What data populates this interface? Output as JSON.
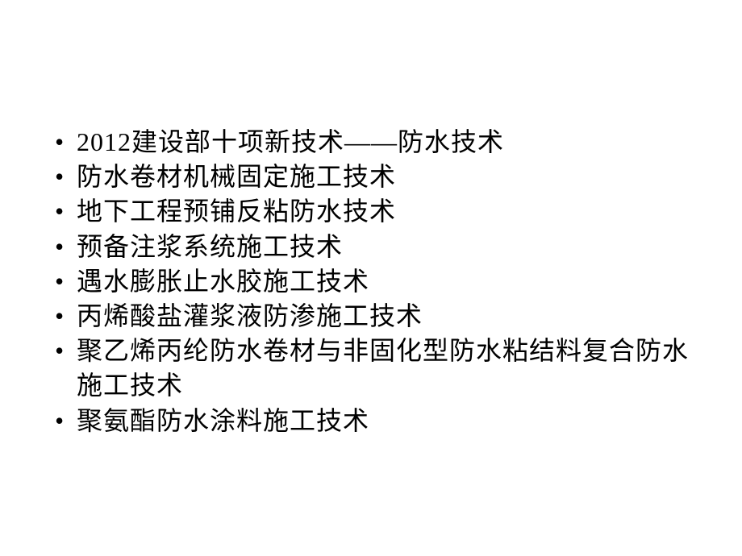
{
  "slide": {
    "background_color": "#ffffff",
    "text_color": "#000000",
    "font_family": "SimSun",
    "font_size_pt": 32,
    "line_height": 1.35,
    "bullets": [
      "2012建设部十项新技术——防水技术",
      "防水卷材机械固定施工技术",
      "地下工程预铺反粘防水技术",
      "预备注浆系统施工技术",
      "遇水膨胀止水胶施工技术",
      "丙烯酸盐灌浆液防渗施工技术",
      "聚乙烯丙纶防水卷材与非固化型防水粘结料复合防水施工技术",
      " 聚氨酯防水涂料施工技术"
    ]
  }
}
